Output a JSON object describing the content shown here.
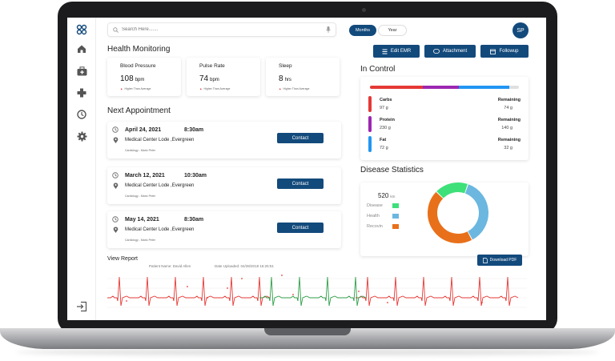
{
  "search": {
    "placeholder": "Search Here......."
  },
  "toggle": {
    "months": "Months",
    "year": "Year"
  },
  "avatar": {
    "initials": "SP"
  },
  "health": {
    "title": "Health Monitoring",
    "hint_text": "Higher Than Average",
    "stats": [
      {
        "label": "Blood Pressure",
        "value": "108",
        "unit": "bpm"
      },
      {
        "label": "Pulse Rate",
        "value": "74",
        "unit": "bpm"
      },
      {
        "label": "Sleep",
        "value": "8",
        "unit": "hrs"
      }
    ]
  },
  "appointments": {
    "title": "Next Appointment",
    "contact_label": "Contact",
    "items": [
      {
        "date": "April 24, 2021",
        "time": "8:30am",
        "location": "Medical Center Lode ,Evergreen",
        "doctor": "Cardiology - Mario Peter"
      },
      {
        "date": "March 12, 2021",
        "time": "10:30am",
        "location": "Medical Center Lode ,Evergreen",
        "doctor": "Cardiology - Mario Peter"
      },
      {
        "date": "May 14, 2021",
        "time": "8:30am",
        "location": "Medical Center Lode ,Evergreen",
        "doctor": "Cardiology - Mario Peter"
      }
    ]
  },
  "actions": {
    "edit_emr": "Edit EMR",
    "attachment": "Attachment",
    "followup": "Followup"
  },
  "in_control": {
    "title": "In Control",
    "bar_colors": [
      "#e53935",
      "#9c27b0",
      "#2196f3"
    ],
    "remaining_label": "Remaining",
    "items": [
      {
        "name": "Carbs",
        "amount": "97 g",
        "remaining": "74 g",
        "color": "#e53935"
      },
      {
        "name": "Protein",
        "amount": "230 g",
        "remaining": "140 g",
        "color": "#9c27b0"
      },
      {
        "name": "Fat",
        "amount": "72 g",
        "remaining": "32 g",
        "color": "#2196f3"
      }
    ]
  },
  "disease": {
    "title": "Disease Statistics",
    "total": "520",
    "total_unit": "km",
    "legend": [
      {
        "label": "Disease",
        "color": "#3ee07a"
      },
      {
        "label": "Health",
        "color": "#6bb7e0"
      },
      {
        "label": "Recovin",
        "color": "#e8701a"
      }
    ],
    "slices": [
      {
        "label": "Disease",
        "value": 18,
        "color": "#3ee07a"
      },
      {
        "label": "Health",
        "value": 37,
        "color": "#6bb7e0"
      },
      {
        "label": "Recovin",
        "value": 45,
        "color": "#e8701a"
      }
    ]
  },
  "report": {
    "title": "View Report",
    "patient_label": "Patient Name:",
    "patient_name": "David Allen",
    "date_label": "Date Uploaded:",
    "date_value": "04/28/2018",
    "time_value": "16:25:51",
    "download_label": "Download PDF"
  }
}
